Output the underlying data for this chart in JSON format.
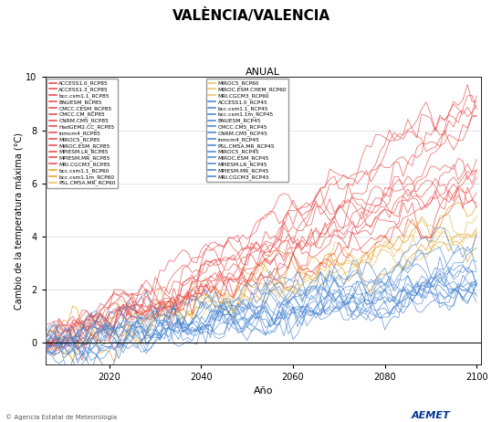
{
  "title": "VALÈNCIA/VALENCIA",
  "subtitle": "ANUAL",
  "xlabel": "Año",
  "ylabel": "Cambio de la temperatura máxima (°C)",
  "ylim": [
    -0.8,
    10
  ],
  "xlim": [
    2006,
    2101
  ],
  "xticks": [
    2020,
    2040,
    2060,
    2080,
    2100
  ],
  "yticks": [
    0,
    2,
    4,
    6,
    8,
    10
  ],
  "rcp85_color": "#e84040",
  "rcp60_orange_color": "#e8a020",
  "rcp60_lightorange_color": "#e8c060",
  "rcp45_color": "#4080d0",
  "background_color": "#ffffff",
  "grid_color": "#cccccc",
  "start_year": 2006,
  "end_year": 2100,
  "seed": 42,
  "legend_left": [
    [
      "#e84040",
      "ACCESS1.0_RCP85"
    ],
    [
      "#e84040",
      "ACCESS1.3_RCP85"
    ],
    [
      "#e84040",
      "bcc.csm1.1_RCP85"
    ],
    [
      "#e84040",
      "BNUESM_RCP85"
    ],
    [
      "#e84040",
      "CMCC.CESM_RCP85"
    ],
    [
      "#e84040",
      "CMCC.CM_RCP85"
    ],
    [
      "#e84040",
      "CNRM.CM5_RCP85"
    ],
    [
      "#e84040",
      "HadGEM2.CC_RCP85"
    ],
    [
      "#e84040",
      "inmcm4_RCP85"
    ],
    [
      "#e84040",
      "MIROC5_RCP85"
    ],
    [
      "#e84040",
      "MIROC.ESM_RCP85"
    ],
    [
      "#e84040",
      "MPIESM.LR_RCP85"
    ],
    [
      "#e84040",
      "MPIESM.MR_RCP85"
    ],
    [
      "#e84040",
      "MRI.CGCM3_RCP85"
    ],
    [
      "#e8a020",
      "bcc.csm1.1_RCP60"
    ],
    [
      "#e8a020",
      "bcc.csm1.1m_RCP60"
    ],
    [
      "#e8c060",
      "PSL.CM5A.MR_RCP60"
    ]
  ],
  "legend_right": [
    [
      "#e8c060",
      "MIROC5_RCP60"
    ],
    [
      "#e8c060",
      "MIROC.ESM.CHEM_RCP60"
    ],
    [
      "#e8c060",
      "MRI.CGCM3_RCP60"
    ],
    [
      "#4080d0",
      "ACCESS1.0_RCP45"
    ],
    [
      "#4080d0",
      "bcc.csm1.1_RCP45"
    ],
    [
      "#4080d0",
      "bcc.csm1.1m_RCP45"
    ],
    [
      "#4080d0",
      "BNUESM_RCP45"
    ],
    [
      "#4080d0",
      "CMCC.CM5_RCP45"
    ],
    [
      "#4080d0",
      "CNRM.CM5_RCP45"
    ],
    [
      "#4080d0",
      "inmcm4_RCP45"
    ],
    [
      "#4080d0",
      "PSL.CM5A.MR_RCP45"
    ],
    [
      "#4080d0",
      "MIROC5_RCP45"
    ],
    [
      "#4080d0",
      "MIROC.ESM_RCP45"
    ],
    [
      "#4080d0",
      "MPIESM.LR_RCP45"
    ],
    [
      "#4080d0",
      "MPIESM.MR_RCP45"
    ],
    [
      "#4080d0",
      "MRI.CGCM3_RCP45"
    ]
  ]
}
